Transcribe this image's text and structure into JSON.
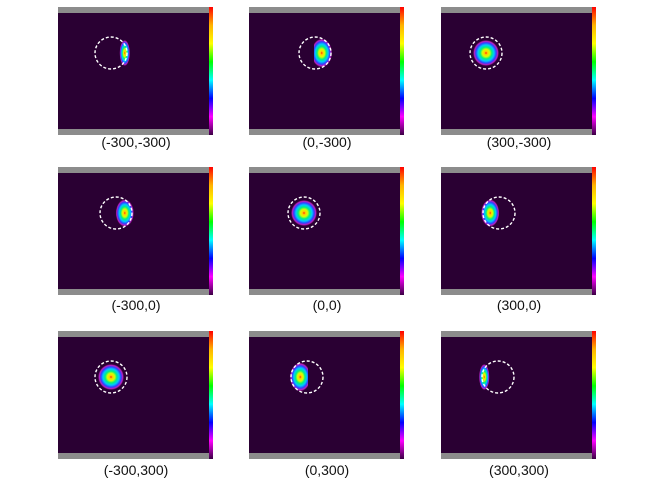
{
  "panels": [
    {
      "id": "p00",
      "label": "(-300,-300)",
      "spot": {
        "dx": 0.86,
        "rx": 0.4,
        "ry": 1.0,
        "clip": "left",
        "dy": 0.0
      }
    },
    {
      "id": "p01",
      "label": "(0,-300)",
      "spot": {
        "dx": 0.42,
        "rx": 0.8,
        "ry": 1.1,
        "clip": "left",
        "dy": 0.0
      }
    },
    {
      "id": "p02",
      "label": "(300,-300)",
      "spot": {
        "dx": 0.0,
        "rx": 1.0,
        "ry": 1.0,
        "clip": "none",
        "dy": 0.0
      }
    },
    {
      "id": "p10",
      "label": "(-300,0)",
      "spot": {
        "dx": 0.55,
        "rx": 0.7,
        "ry": 1.05,
        "clip": "left",
        "dy": 0.0
      }
    },
    {
      "id": "p11",
      "label": "(0,0)",
      "spot": {
        "dx": 0.0,
        "rx": 1.0,
        "ry": 1.0,
        "clip": "none",
        "dy": 0.0
      }
    },
    {
      "id": "p12",
      "label": "(300,0)",
      "spot": {
        "dx": -0.55,
        "rx": 0.7,
        "ry": 1.05,
        "clip": "right",
        "dy": 0.0
      }
    },
    {
      "id": "p20",
      "label": "(-300,300)",
      "spot": {
        "dx": 0.0,
        "rx": 1.0,
        "ry": 1.0,
        "clip": "none",
        "dy": 0.0
      }
    },
    {
      "id": "p21",
      "label": "(0,300)",
      "spot": {
        "dx": -0.42,
        "rx": 0.8,
        "ry": 1.1,
        "clip": "right",
        "dy": 0.0
      }
    },
    {
      "id": "p22",
      "label": "(300,300)",
      "spot": {
        "dx": -0.86,
        "rx": 0.4,
        "ry": 1.0,
        "clip": "right",
        "dy": 0.0
      }
    }
  ],
  "colors": {
    "background": "#2a0033",
    "bar": "#8c8c8c",
    "circle": "#ffffff",
    "colorbar": [
      "#ff0000",
      "#ffb300",
      "#ffff00",
      "#00ff00",
      "#00ffff",
      "#0000ff",
      "#ff00ff",
      "#3b0044"
    ]
  }
}
